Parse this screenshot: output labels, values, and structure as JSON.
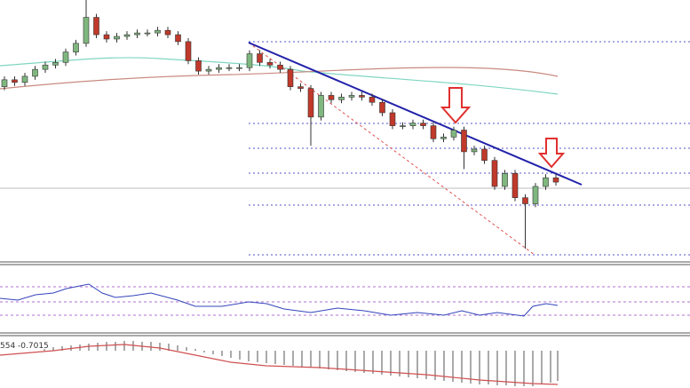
{
  "chart_data": {
    "type": "candlestick",
    "indicator_label": "554 -0.7015",
    "open": [
      200,
      208,
      205,
      212,
      220,
      225,
      228,
      240,
      250,
      280,
      260,
      255,
      258,
      260,
      262,
      262,
      265,
      260,
      252,
      230,
      218,
      220,
      222,
      222,
      222,
      238,
      228,
      225,
      220,
      200,
      198,
      165,
      190,
      185,
      188,
      190,
      188,
      182,
      170,
      155,
      155,
      158,
      155,
      140,
      142,
      150,
      125,
      128,
      115,
      85,
      100,
      72,
      65,
      85,
      95
    ],
    "high": [
      212,
      212,
      216,
      224,
      229,
      232,
      244,
      254,
      300,
      284,
      264,
      262,
      264,
      266,
      266,
      269,
      269,
      264,
      256,
      234,
      224,
      226,
      226,
      226,
      242,
      242,
      232,
      229,
      224,
      204,
      202,
      194,
      194,
      192,
      194,
      194,
      192,
      186,
      174,
      159,
      162,
      162,
      159,
      146,
      154,
      154,
      132,
      132,
      119,
      104,
      104,
      76,
      89,
      99,
      99
    ],
    "low": [
      196,
      201,
      201,
      208,
      216,
      221,
      224,
      236,
      246,
      256,
      251,
      251,
      254,
      256,
      258,
      258,
      256,
      248,
      226,
      214,
      214,
      216,
      218,
      218,
      218,
      224,
      221,
      216,
      196,
      194,
      132,
      161,
      181,
      181,
      184,
      184,
      178,
      166,
      151,
      151,
      151,
      151,
      136,
      136,
      138,
      105,
      121,
      111,
      81,
      81,
      68,
      13,
      61,
      81,
      86
    ],
    "close": [
      208,
      205,
      212,
      220,
      225,
      228,
      240,
      250,
      280,
      260,
      255,
      258,
      260,
      262,
      262,
      265,
      260,
      252,
      230,
      218,
      220,
      222,
      222,
      222,
      238,
      228,
      225,
      220,
      200,
      198,
      165,
      190,
      185,
      188,
      190,
      188,
      182,
      170,
      155,
      155,
      158,
      155,
      140,
      142,
      150,
      125,
      128,
      115,
      85,
      100,
      72,
      65,
      85,
      95,
      90
    ],
    "ylim": [
      0,
      300
    ],
    "up_color": "#7fb77f",
    "down_color": "#c0392b"
  }
}
